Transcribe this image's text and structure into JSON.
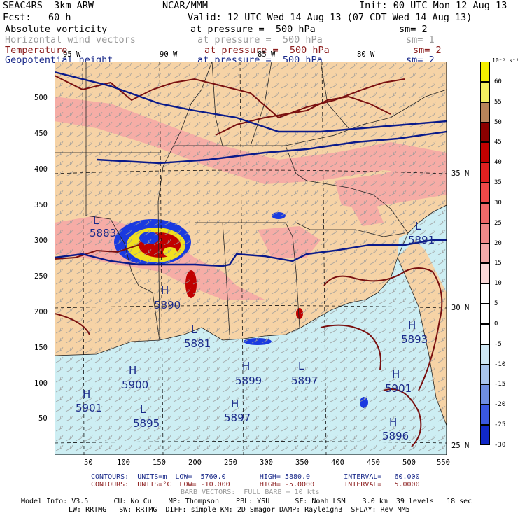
{
  "header": {
    "model": "SEAC4RS  3km ARW",
    "center": "NCAR/MMM",
    "init": "Init: 00 UTC Mon 12 Aug 13",
    "fcst": "Fcst:   60 h",
    "valid": "Valid: 12 UTC Wed 14 Aug 13 (07 CDT Wed 14 Aug 13)"
  },
  "fields": [
    {
      "name": "Absolute vorticity",
      "pressure": "at pressure =  500 hPa",
      "sm": "sm= 2",
      "color": "#000000"
    },
    {
      "name": "Horizontal wind vectors",
      "pressure": "at pressure =  500 hPa",
      "sm": "sm= 1",
      "color": "#9a9a9a"
    },
    {
      "name": "Temperature",
      "pressure": "at pressure =  500 hPa",
      "sm": "sm= 2",
      "color": "#8b1c1c"
    },
    {
      "name": "Geopotential height",
      "pressure": "at pressure =  500 hPa",
      "sm": "sm= 2",
      "color": "#1a2a8a"
    }
  ],
  "map": {
    "lon_labels": [
      "95 W",
      "90 W",
      "85 W",
      "80 W"
    ],
    "lat_labels": [
      "35 N",
      "30 N",
      "25 N"
    ],
    "x_ticks": [
      "50",
      "100",
      "150",
      "200",
      "250",
      "300",
      "350",
      "400",
      "450",
      "500",
      "550"
    ],
    "y_ticks": [
      "50",
      "100",
      "150",
      "200",
      "250",
      "300",
      "350",
      "400",
      "450",
      "500"
    ],
    "highs_lows": [
      {
        "type": "L",
        "value": "5883"
      },
      {
        "type": "H",
        "value": "5890"
      },
      {
        "type": "L",
        "value": "5881"
      },
      {
        "type": "L",
        "value": "5891"
      },
      {
        "type": "H",
        "value": "5893"
      },
      {
        "type": "H",
        "value": "5900"
      },
      {
        "type": "H",
        "value": "5899"
      },
      {
        "type": "L",
        "value": "5897"
      },
      {
        "type": "H",
        "value": "5901"
      },
      {
        "type": "L",
        "value": "5895"
      },
      {
        "type": "H",
        "value": "5897"
      },
      {
        "type": "H",
        "value": "5901"
      },
      {
        "type": "H",
        "value": "5896"
      }
    ],
    "colors": {
      "land": "#f6d3a6",
      "water": "#cdeef3",
      "height_contour": "#0a1a8a",
      "temp_contour": "#7a1010",
      "vort_light": "#f6a6a6",
      "vort_mid": "#e85050",
      "vort_yellow": "#f0e020",
      "vort_blue": "#1a3ae0"
    }
  },
  "colorbar": {
    "unit": "10⁻⁵ s⁻¹",
    "labels": [
      "60",
      "55",
      "50",
      "45",
      "40",
      "35",
      "30",
      "25",
      "20",
      "15",
      "10",
      "5",
      "0",
      "-5",
      "-10",
      "-15",
      "-20",
      "-25",
      "-30"
    ],
    "colors": [
      "#f5f000",
      "#f5f060",
      "#b8845a",
      "#8b0000",
      "#c00000",
      "#e02020",
      "#f04848",
      "#f06868",
      "#f08888",
      "#f4a8a8",
      "#fbd8d8",
      "#ffffff",
      "#ffffff",
      "#ffffff",
      "#cfe7f4",
      "#a8c4ec",
      "#6f8ee0",
      "#3a58e0",
      "#1028c8"
    ]
  },
  "footer": {
    "contours_height": "CONTOURS:  UNITS=m  LOW=  5760.0        HIGH= 5880.0        INTERVAL=   60.000",
    "contours_temp": "CONTOURS:  UNITS=°C  LOW= -10.000       HIGH= -5.0000       INTERVAL=   5.0000",
    "barb": "BARB VECTORS:  FULL BARB = 10 kts",
    "model_info_1": "Model Info: V3.5      CU: No Cu    MP: Thompson    PBL: YSU      SF: Noah LSM    3.0 km  39 levels   18 sec",
    "model_info_2": "LW: RRTMG   SW: RRTMG  DIFF: simple KM: 2D Smagor DAMP: Rayleigh3  SFLAY: Rev MM5"
  }
}
